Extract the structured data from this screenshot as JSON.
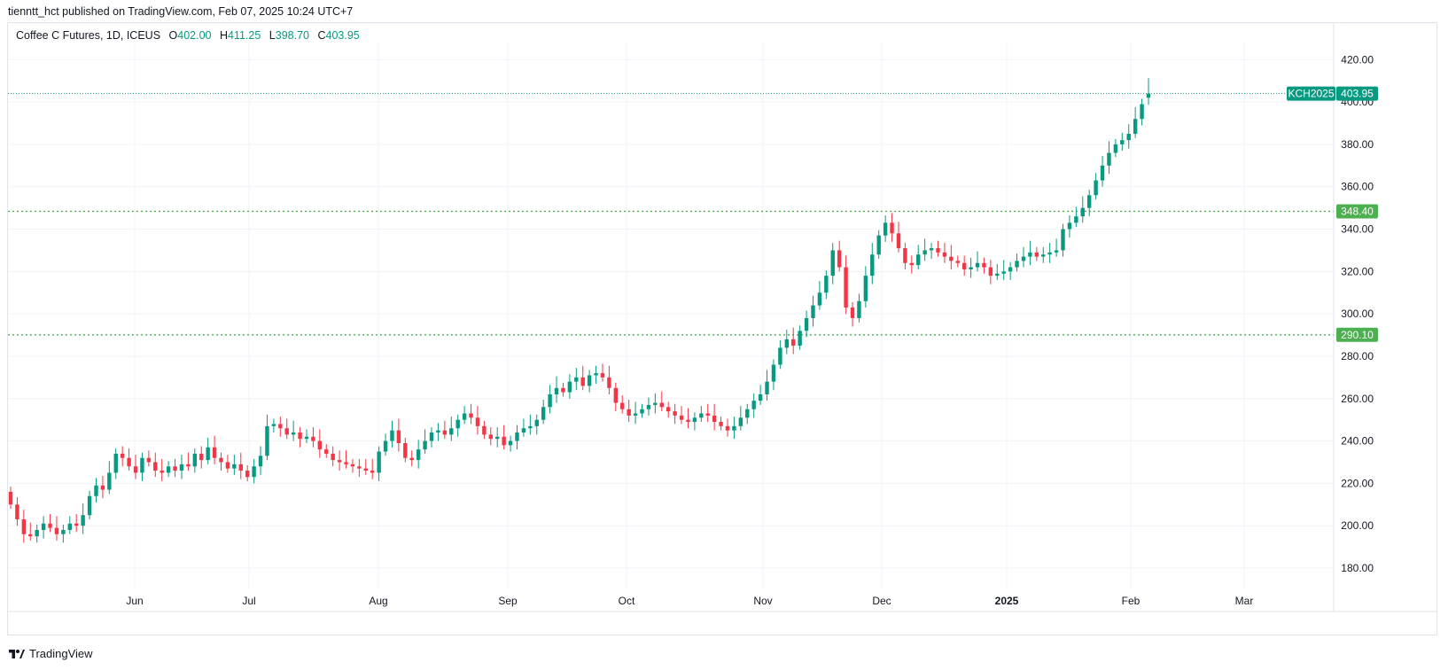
{
  "header": {
    "publish_line": "tienntt_hct published on TradingView.com, Feb 07, 2025 10:24 UTC+7"
  },
  "legend": {
    "symbol": "Coffee C Futures, 1D, ICEUS",
    "o_label": "O",
    "o_value": "402.00",
    "h_label": "H",
    "h_value": "411.25",
    "l_label": "L",
    "l_value": "398.70",
    "c_label": "C",
    "c_value": "403.95"
  },
  "colors": {
    "up": "#089981",
    "down": "#f23645",
    "level_line": "#4caf50",
    "last_price_line": "#089981",
    "grid": "#f0f3fa"
  },
  "price_tags": {
    "symbol_tag": "KCH2025",
    "last_price": "403.95",
    "level_1": "348.40",
    "level_2": "290.10"
  },
  "footer": {
    "brand": "TradingView",
    "logo_icon": "tradingview-logo-icon"
  },
  "chart_data": {
    "type": "candlestick",
    "y_axis": {
      "ticks": [
        "180.00",
        "200.00",
        "220.00",
        "240.00",
        "260.00",
        "280.00",
        "300.00",
        "320.00",
        "340.00",
        "360.00",
        "380.00",
        "400.00",
        "420.00"
      ],
      "range": [
        168,
        432
      ]
    },
    "x_axis": {
      "labels": [
        "Jun",
        "Jul",
        "Aug",
        "Sep",
        "Oct",
        "Nov",
        "Dec",
        "2025",
        "Feb",
        "Mar"
      ],
      "range_bars": [
        -0.5,
        225
      ]
    },
    "horizontal_levels": [
      348.4,
      290.1
    ],
    "last_price": 403.95,
    "series_close": [
      210,
      203,
      196,
      195,
      198,
      201,
      199,
      196,
      198,
      201,
      200,
      205,
      214,
      219,
      217,
      225,
      234,
      232,
      228,
      225,
      232,
      230,
      226,
      225,
      228,
      226,
      229,
      228,
      234,
      231,
      237,
      232,
      230,
      227,
      229,
      226,
      223,
      228,
      233,
      247,
      248,
      246,
      243,
      244,
      241,
      242,
      240,
      236,
      234,
      231,
      230,
      229,
      228,
      227,
      226,
      225,
      235,
      240,
      245,
      239,
      232,
      231,
      236,
      240,
      244,
      245,
      243,
      246,
      250,
      253,
      251,
      247,
      243,
      241,
      242,
      238,
      240,
      244,
      246,
      247,
      250,
      256,
      262,
      265,
      263,
      268,
      270,
      266,
      271,
      272,
      270,
      265,
      258,
      255,
      252,
      253,
      255,
      257,
      258,
      256,
      254,
      252,
      250,
      249,
      251,
      253,
      252,
      249,
      247,
      245,
      247,
      251,
      255,
      259,
      262,
      268,
      276,
      284,
      288,
      285,
      292,
      298,
      304,
      310,
      318,
      330,
      322,
      303,
      298,
      306,
      318,
      328,
      337,
      343,
      338,
      331,
      324,
      323,
      328,
      330,
      331,
      329,
      327,
      325,
      324,
      321,
      322,
      324,
      322,
      318,
      319,
      320,
      322,
      325,
      327,
      329,
      327,
      328,
      329,
      330,
      340,
      343,
      346,
      350,
      356,
      363,
      370,
      376,
      380,
      382,
      385,
      392,
      399,
      403.95
    ],
    "ohlc_last": {
      "open": 402.0,
      "high": 411.25,
      "low": 398.7,
      "close": 403.95
    }
  }
}
